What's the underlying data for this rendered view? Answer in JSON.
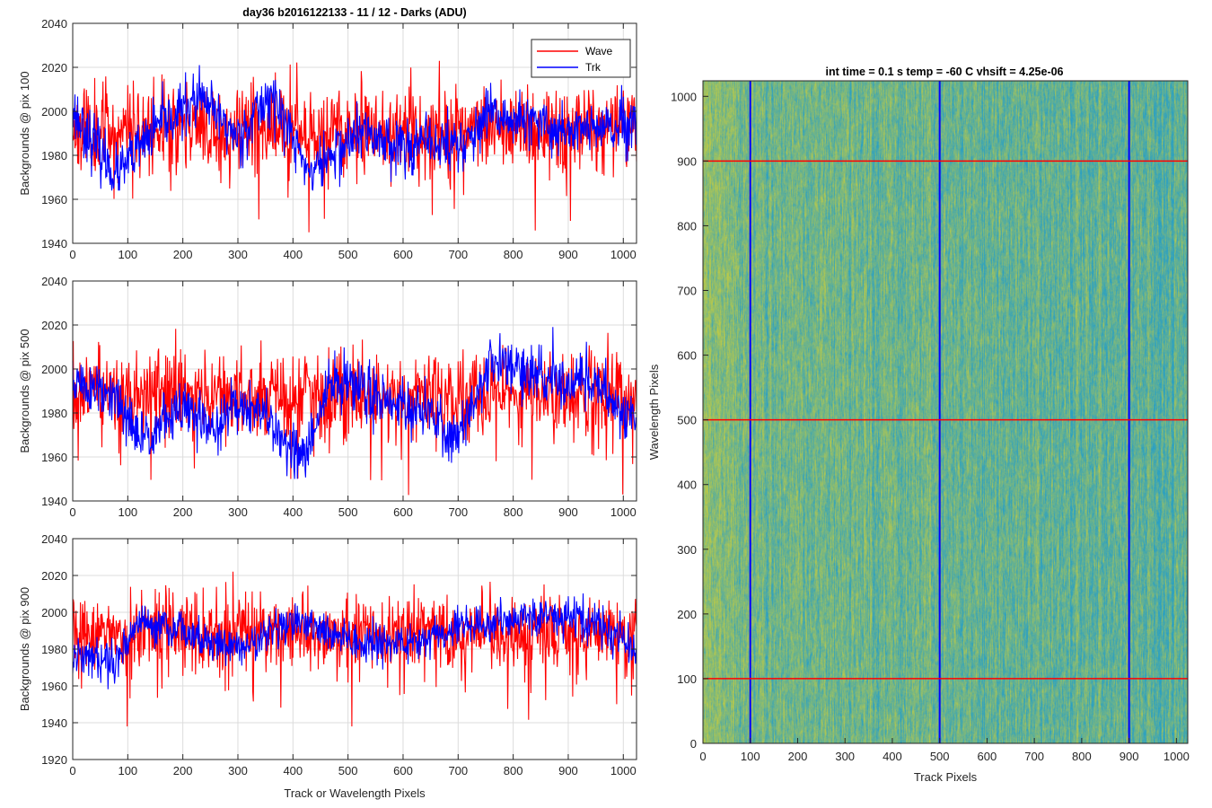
{
  "figure_title": "day36 b2016122133 - 11 / 12 - Darks (ADU)",
  "colors": {
    "wave": "#ff0000",
    "trk": "#0000ff",
    "grid": "#dcdcdc",
    "axis": "#262626",
    "image_low": "#2aa0c4",
    "image_high": "#b9c94a"
  },
  "chart_data": [
    {
      "type": "line",
      "ylabel": "Backgrounds @ pix 100",
      "xlabel": "",
      "xlim": [
        0,
        1024
      ],
      "ylim": [
        1940,
        2040
      ],
      "xticks": [
        0,
        100,
        200,
        300,
        400,
        500,
        600,
        700,
        800,
        900,
        1000
      ],
      "yticks": [
        1940,
        1960,
        1980,
        2000,
        2020,
        2040
      ],
      "grid": true,
      "legend": "top-right",
      "series": [
        {
          "name": "Wave",
          "color": "#ff0000",
          "mean": 1992,
          "noise": 10,
          "min": 1945,
          "max": 2024,
          "seed": 11
        },
        {
          "name": "Trk",
          "color": "#0000ff",
          "mean": 1990,
          "noise": 7,
          "min": 1964,
          "max": 2021,
          "seed": 23,
          "trend": [
            [
              0,
              2000
            ],
            [
              80,
              1970
            ],
            [
              150,
              1992
            ],
            [
              230,
              2006
            ],
            [
              300,
              1988
            ],
            [
              360,
              2008
            ],
            [
              430,
              1972
            ],
            [
              520,
              1990
            ],
            [
              600,
              1985
            ],
            [
              710,
              1985
            ],
            [
              760,
              1998
            ],
            [
              880,
              1992
            ],
            [
              1024,
              1992
            ]
          ]
        }
      ]
    },
    {
      "type": "line",
      "ylabel": "Backgrounds @ pix 500",
      "xlabel": "",
      "xlim": [
        0,
        1024
      ],
      "ylim": [
        1940,
        2040
      ],
      "xticks": [
        0,
        100,
        200,
        300,
        400,
        500,
        600,
        700,
        800,
        900,
        1000
      ],
      "yticks": [
        1940,
        1960,
        1980,
        2000,
        2020,
        2040
      ],
      "grid": true,
      "legend": "none",
      "series": [
        {
          "name": "Wave",
          "color": "#ff0000",
          "mean": 1988,
          "noise": 10,
          "min": 1942,
          "max": 2024,
          "seed": 37
        },
        {
          "name": "Trk",
          "color": "#0000ff",
          "mean": 1985,
          "noise": 7,
          "min": 1950,
          "max": 2020,
          "seed": 51,
          "trend": [
            [
              0,
              1995
            ],
            [
              80,
              1985
            ],
            [
              120,
              1968
            ],
            [
              200,
              1982
            ],
            [
              260,
              1972
            ],
            [
              300,
              1985
            ],
            [
              340,
              1980
            ],
            [
              420,
              1958
            ],
            [
              470,
              1995
            ],
            [
              560,
              1988
            ],
            [
              640,
              1980
            ],
            [
              700,
              1968
            ],
            [
              760,
              2005
            ],
            [
              850,
              1995
            ],
            [
              950,
              1995
            ],
            [
              1024,
              1975
            ]
          ]
        }
      ]
    },
    {
      "type": "line",
      "ylabel": "Backgrounds @ pix 900",
      "xlabel": "Track or Wavelength Pixels",
      "xlim": [
        0,
        1024
      ],
      "ylim": [
        1920,
        2040
      ],
      "xticks": [
        0,
        100,
        200,
        300,
        400,
        500,
        600,
        700,
        800,
        900,
        1000
      ],
      "yticks": [
        1920,
        1940,
        1960,
        1980,
        2000,
        2020,
        2040
      ],
      "grid": true,
      "legend": "none",
      "series": [
        {
          "name": "Wave",
          "color": "#ff0000",
          "mean": 1988,
          "noise": 10,
          "min": 1938,
          "max": 2023,
          "seed": 67
        },
        {
          "name": "Trk",
          "color": "#0000ff",
          "mean": 1988,
          "noise": 6,
          "min": 1958,
          "max": 2015,
          "seed": 79,
          "trend": [
            [
              0,
              1975
            ],
            [
              80,
              1975
            ],
            [
              120,
              1995
            ],
            [
              200,
              1990
            ],
            [
              300,
              1980
            ],
            [
              400,
              1995
            ],
            [
              500,
              1985
            ],
            [
              600,
              1982
            ],
            [
              700,
              1992
            ],
            [
              850,
              1998
            ],
            [
              950,
              1995
            ],
            [
              1024,
              1978
            ]
          ]
        }
      ]
    },
    {
      "type": "heatmap",
      "title": "int time = 0.1 s   temp = -60 C   vhsift = 4.25e-06",
      "xlabel": "Track Pixels",
      "ylabel": "Wavelength Pixels",
      "xlim": [
        0,
        1024
      ],
      "ylim": [
        0,
        1024
      ],
      "xticks": [
        0,
        100,
        200,
        300,
        400,
        500,
        600,
        700,
        800,
        900,
        1000
      ],
      "yticks": [
        0,
        100,
        200,
        300,
        400,
        500,
        600,
        700,
        800,
        900,
        1000
      ],
      "grid": false,
      "overlay_lines": {
        "vertical_blue_at_x": [
          100,
          500,
          900
        ],
        "horizontal_red_at_y": [
          100,
          500,
          900
        ]
      }
    }
  ]
}
